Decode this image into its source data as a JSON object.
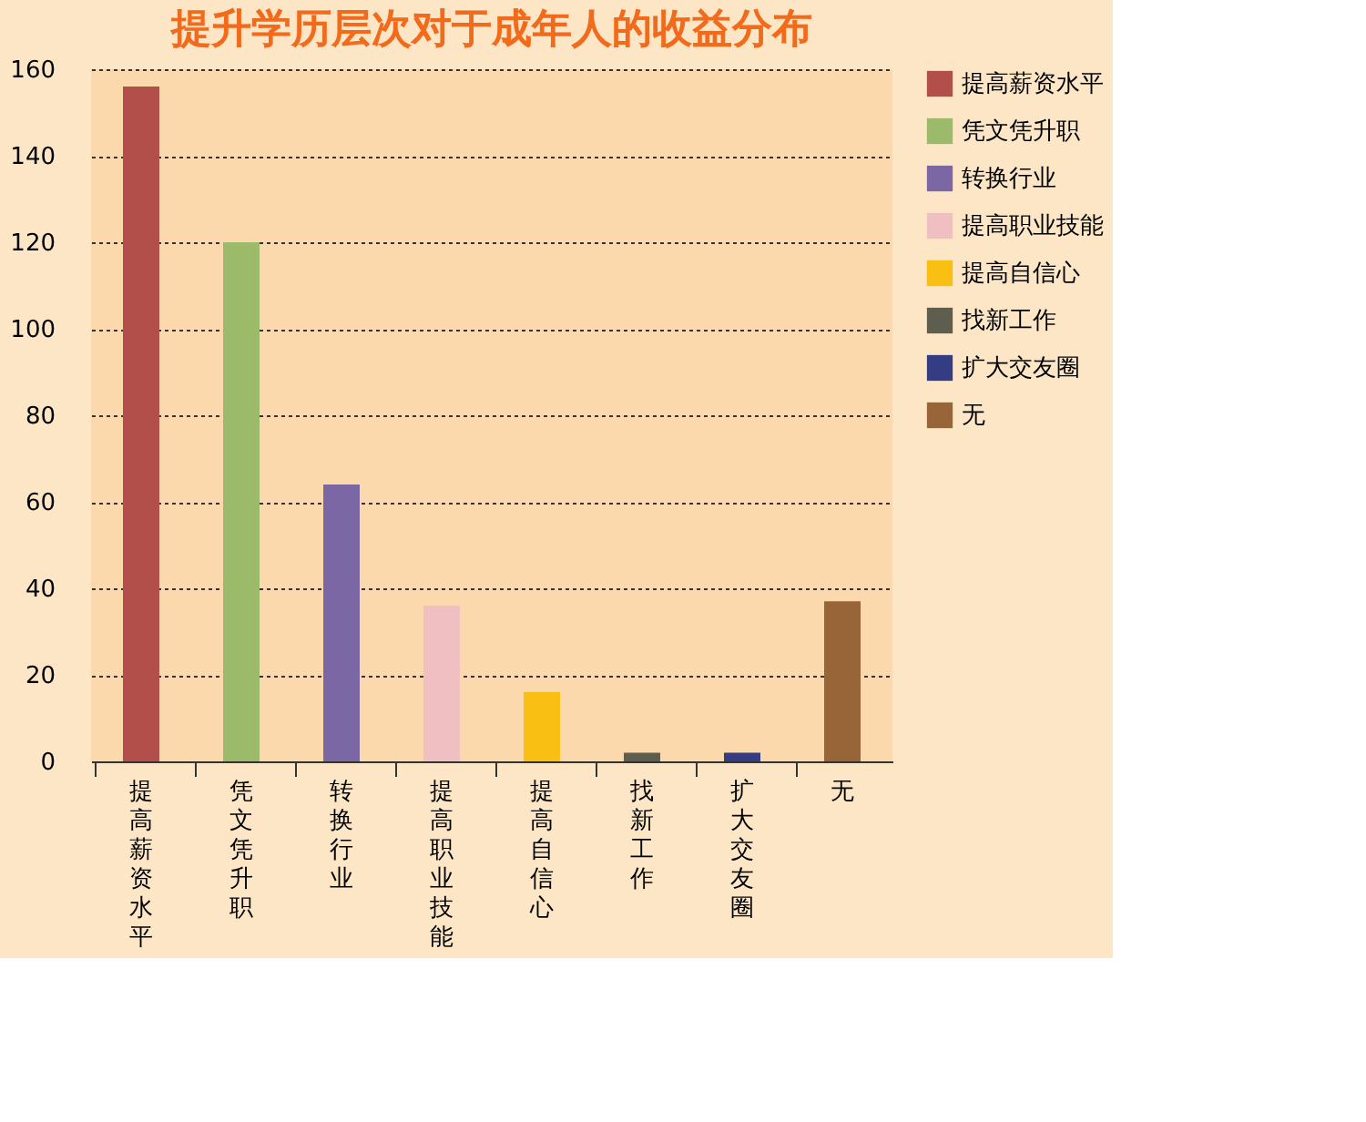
{
  "chart_data": {
    "type": "bar",
    "title": "提升学历层次对于成年人的收益分布",
    "categories": [
      "提高薪资水平",
      "凭文凭升职",
      "转换行业",
      "提高职业技能",
      "提高自信心",
      "找新工作",
      "扩大交友圈",
      "无"
    ],
    "series": [
      {
        "name": "提高薪资水平",
        "color": "#b24f4a",
        "values": [
          156,
          null,
          null,
          null,
          null,
          null,
          null,
          null
        ]
      },
      {
        "name": "凭文凭升职",
        "color": "#9bbb6a",
        "values": [
          null,
          120,
          null,
          null,
          null,
          null,
          null,
          null
        ]
      },
      {
        "name": "转换行业",
        "color": "#7b67a3",
        "values": [
          null,
          null,
          64,
          null,
          null,
          null,
          null,
          null
        ]
      },
      {
        "name": "提高职业技能",
        "color": "#efbfc2",
        "values": [
          null,
          null,
          null,
          36,
          null,
          null,
          null,
          null
        ]
      },
      {
        "name": "提高自信心",
        "color": "#f9c013",
        "values": [
          null,
          null,
          null,
          null,
          16,
          null,
          null,
          null
        ]
      },
      {
        "name": "找新工作",
        "color": "#5e5e4e",
        "values": [
          null,
          null,
          null,
          null,
          null,
          2,
          null,
          null
        ]
      },
      {
        "name": "扩大交友圈",
        "color": "#343c84",
        "values": [
          null,
          null,
          null,
          null,
          null,
          null,
          2,
          null
        ]
      },
      {
        "name": "无",
        "color": "#986539",
        "values": [
          null,
          null,
          null,
          null,
          null,
          null,
          null,
          37
        ]
      }
    ],
    "ylim": [
      0,
      160
    ],
    "yticks": [
      0,
      20,
      40,
      60,
      80,
      100,
      120,
      140,
      160
    ],
    "grid": "y",
    "legend": "right"
  }
}
